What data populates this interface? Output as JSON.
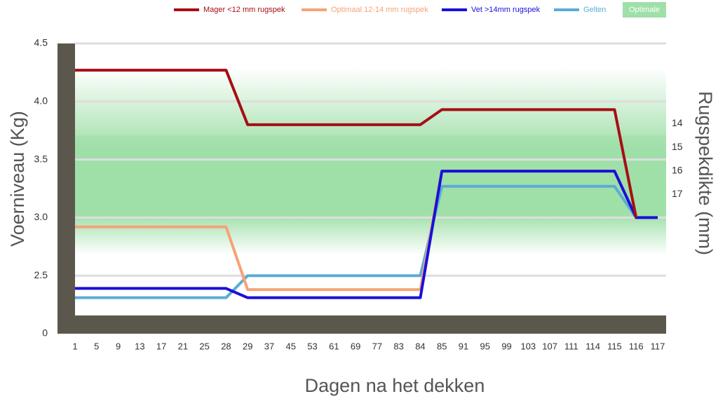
{
  "chart_data": {
    "type": "line",
    "x_label": "Dagen na het dekken",
    "y_label": "Voerniveau (Kg)",
    "y2_label": "Rugspekdikte (mm)",
    "categories": [
      "1",
      "5",
      "9",
      "13",
      "17",
      "21",
      "25",
      "28",
      "29",
      "37",
      "45",
      "53",
      "61",
      "69",
      "77",
      "83",
      "84",
      "85",
      "91",
      "95",
      "99",
      "103",
      "107",
      "111",
      "114",
      "115",
      "116",
      "117"
    ],
    "series": [
      {
        "name": "Gelten",
        "color": "#5aadd6",
        "values": [
          2.31,
          2.31,
          2.31,
          2.31,
          2.31,
          2.31,
          2.31,
          2.31,
          2.5,
          2.5,
          2.5,
          2.5,
          2.5,
          2.5,
          2.5,
          2.5,
          2.5,
          3.27,
          3.27,
          3.27,
          3.27,
          3.27,
          3.27,
          3.27,
          3.27,
          3.27,
          3.0,
          null
        ]
      },
      {
        "name": "Optimaal 12-14 mm rugspek",
        "color": "#f7a278",
        "values": [
          2.92,
          2.92,
          2.92,
          2.92,
          2.92,
          2.92,
          2.92,
          2.92,
          2.38,
          2.38,
          2.38,
          2.38,
          2.38,
          2.38,
          2.38,
          2.38,
          2.38,
          3.4,
          3.4,
          3.4,
          3.4,
          3.4,
          3.4,
          3.4,
          3.4,
          3.4,
          3.0,
          null
        ]
      },
      {
        "name": "Vet >14mm rugspek",
        "color": "#1a10d8",
        "values": [
          2.39,
          2.39,
          2.39,
          2.39,
          2.39,
          2.39,
          2.39,
          2.39,
          2.31,
          2.31,
          2.31,
          2.31,
          2.31,
          2.31,
          2.31,
          2.31,
          2.31,
          3.4,
          3.4,
          3.4,
          3.4,
          3.4,
          3.4,
          3.4,
          3.4,
          3.4,
          3.0,
          3.0
        ]
      },
      {
        "name": "Mager <12 mm rugspek",
        "color": "#a50f15",
        "values": [
          4.27,
          4.27,
          4.27,
          4.27,
          4.27,
          4.27,
          4.27,
          4.27,
          3.8,
          3.8,
          3.8,
          3.8,
          3.8,
          3.8,
          3.8,
          3.8,
          3.8,
          3.93,
          3.93,
          3.93,
          3.93,
          3.93,
          3.93,
          3.93,
          3.93,
          3.93,
          3.0,
          null
        ]
      }
    ],
    "legend_order": [
      3,
      1,
      2,
      0
    ],
    "band": {
      "name": "Optimale",
      "color": "#9fdfa8",
      "range": [
        14.5,
        16.7
      ]
    },
    "ylim": [
      0,
      4.5
    ],
    "axis_break": [
      0,
      2
    ],
    "yticks": [
      0,
      2.5,
      {
        "value": 3,
        "label": "3.0"
      },
      3.5,
      {
        "value": 4,
        "label": "4.0"
      },
      4.5
    ],
    "y2lim": [
      10.6,
      22.9
    ],
    "y2_inverted": true,
    "y2ticks": [
      14,
      15,
      16,
      17
    ],
    "grid": true
  }
}
